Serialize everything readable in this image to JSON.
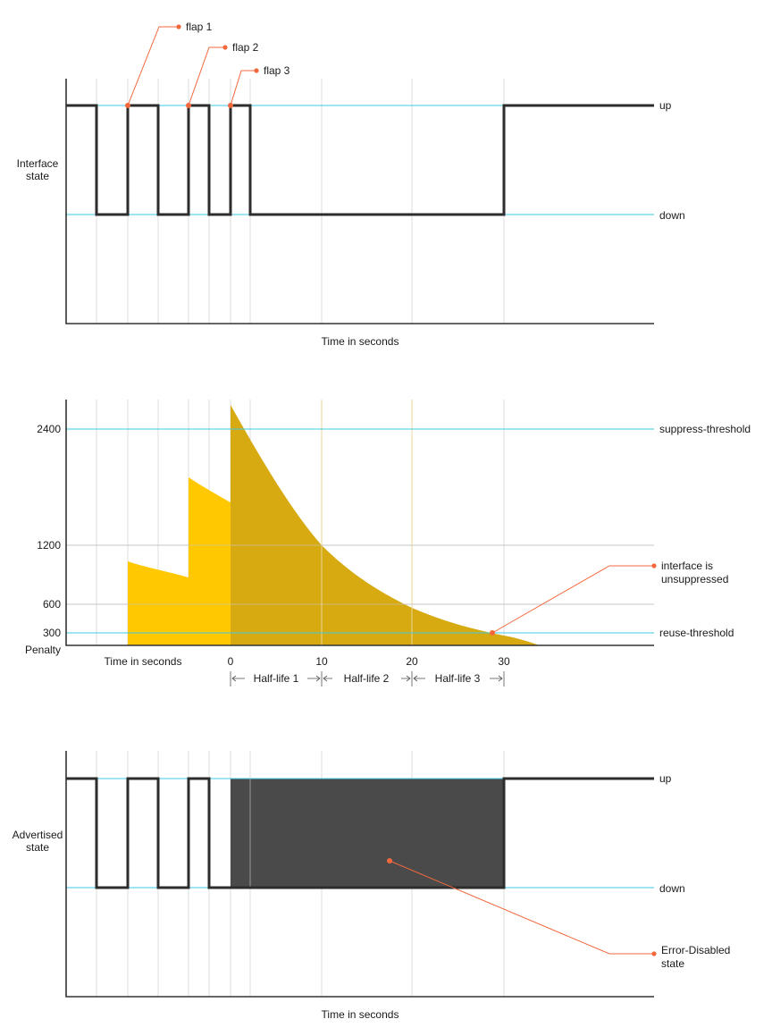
{
  "colors": {
    "reference_line": "#3fc9e6",
    "callout": "#f2683c",
    "penalty_fill": "#ffc800",
    "penalty_decay_fill": "#d6aa10",
    "error_disabled_fill": "#4a4a4a",
    "signal": "#2d2d2d"
  },
  "panel1": {
    "ylabel_line1": "Interface",
    "ylabel_line2": "state",
    "level_up": "up",
    "level_down": "down",
    "xlabel": "Time in seconds",
    "flaps": [
      "flap 1",
      "flap 2",
      "flap 3"
    ]
  },
  "panel2": {
    "ylabel": "Penalty",
    "xlabel": "Time in seconds",
    "y_ticks": [
      "2400",
      "1200",
      "600",
      "300"
    ],
    "x_ticks": [
      "0",
      "10",
      "20",
      "30"
    ],
    "suppress_label": "suppress-threshold",
    "reuse_label": "reuse-threshold",
    "unsuppressed_line1": "interface is",
    "unsuppressed_line2": "unsuppressed",
    "half_lives": [
      "Half-life 1",
      "Half-life 2",
      "Half-life 3"
    ]
  },
  "panel3": {
    "ylabel_line1": "Advertised",
    "ylabel_line2": "state",
    "level_up": "up",
    "level_down": "down",
    "xlabel": "Time in seconds",
    "error_line1": "Error-Disabled",
    "error_line2": "state"
  }
}
